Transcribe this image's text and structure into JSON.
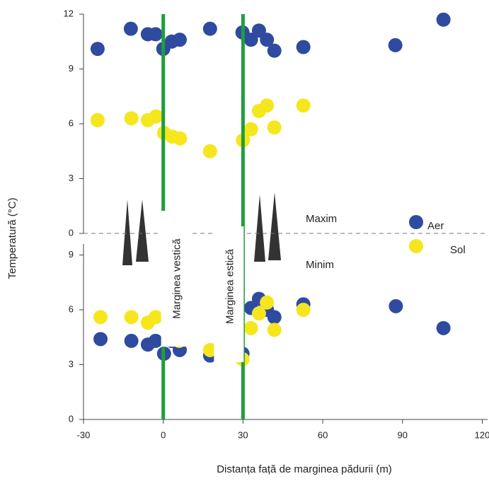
{
  "chart_data": [
    {
      "type": "scatter",
      "title": "Maxim",
      "y_label": "Temperatură (°C)",
      "xlim": [
        -30,
        122
      ],
      "ylim": [
        0,
        12
      ],
      "yticks": [
        0,
        3,
        6,
        9,
        12
      ],
      "vlines": [
        {
          "x": 0,
          "label": "Marginea vestică",
          "color": "#1f9e3c"
        },
        {
          "x": 30,
          "label": "Marginea estică",
          "color": "#1f9e3c"
        }
      ],
      "series": [
        {
          "name": "Aer",
          "color": "#2f4b9f",
          "x": [
            -24.7,
            -12.2,
            -5.8,
            -2.9,
            0,
            3.2,
            6.2,
            17.6,
            29.8,
            33,
            36,
            39,
            41.8,
            52.7,
            87.3,
            105.4
          ],
          "values": [
            10.1,
            11.2,
            10.9,
            10.9,
            10.1,
            10.5,
            10.6,
            11.2,
            11.0,
            10.6,
            11.1,
            10.6,
            10.0,
            10.2,
            10.3,
            11.7
          ]
        },
        {
          "name": "Sol",
          "color": "#f6e61e",
          "x": [
            -24.7,
            -12,
            -5.8,
            -2.7,
            0.3,
            3.4,
            6.3,
            17.6,
            30,
            33,
            36,
            39,
            41.8,
            52.7
          ],
          "values": [
            6.2,
            6.3,
            6.2,
            6.4,
            5.5,
            5.3,
            5.2,
            4.5,
            5.1,
            5.7,
            6.7,
            7.0,
            5.8,
            7.0
          ]
        }
      ]
    },
    {
      "type": "scatter",
      "title": "Minim",
      "x_label": "Distanța față de marginea pădurii (m)",
      "xlim": [
        -30,
        122
      ],
      "ylim": [
        0,
        9.6
      ],
      "xticks": [
        -30,
        0,
        30,
        60,
        90,
        120
      ],
      "yticks": [
        0,
        3,
        6,
        9
      ],
      "series": [
        {
          "color": "#2f4b9f",
          "x": [
            -23.6,
            -12,
            -5.8,
            -2.9,
            0.3,
            3.2,
            6.2,
            17.6,
            29.8,
            33,
            36,
            39,
            41.8,
            52.7,
            87.5,
            105.4
          ],
          "values": [
            4.4,
            4.3,
            4.1,
            4.3,
            3.6,
            4.3,
            3.8,
            3.5,
            3.6,
            6.1,
            6.6,
            6.0,
            5.6,
            6.3,
            6.2,
            5.0
          ]
        },
        {
          "color": "#f6e61e",
          "x": [
            -23.6,
            -12,
            -5.8,
            -2.9,
            6,
            17.6,
            29.8,
            33,
            36,
            39,
            41.8,
            52.7
          ],
          "values": [
            5.6,
            5.6,
            5.3,
            5.6,
            4.3,
            3.8,
            3.3,
            5.0,
            5.8,
            6.4,
            4.9,
            6.0
          ]
        }
      ]
    }
  ]
}
